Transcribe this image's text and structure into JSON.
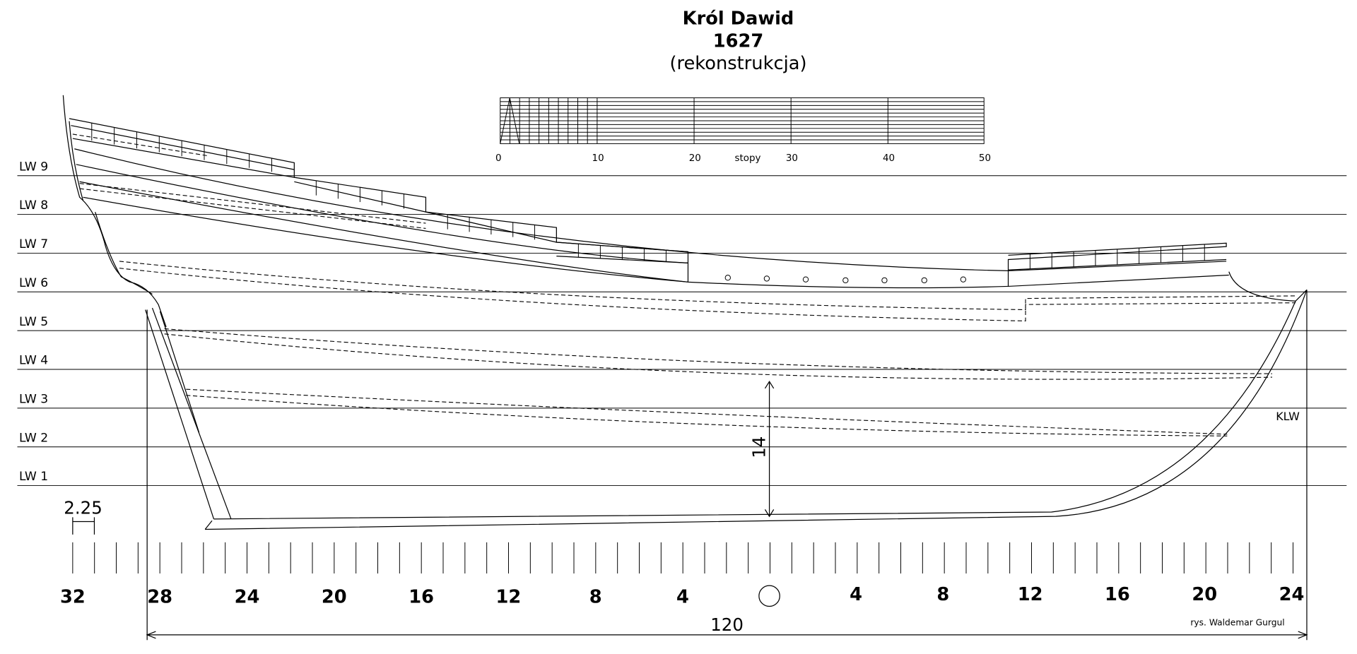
{
  "title": {
    "name": "Król Dawid",
    "year": "1627",
    "note": "(rekonstrukcja)"
  },
  "scale": {
    "labels": [
      "0",
      "10",
      "20",
      "30",
      "40",
      "50"
    ],
    "unit": "stopy"
  },
  "waterlines": [
    "LW 9",
    "LW 8",
    "LW 7",
    "LW 6",
    "LW 5",
    "LW 4",
    "LW 3",
    "LW 2",
    "LW 1"
  ],
  "frames": {
    "left": [
      32,
      28,
      24,
      20,
      16,
      12,
      8,
      4
    ],
    "right": [
      4,
      8,
      12,
      16,
      20,
      24
    ]
  },
  "dimensions": {
    "draft": "14",
    "frame_spacing": "2.25",
    "length": "120"
  },
  "labels": {
    "klw": "KLW",
    "author": "rys. Waldemar Gurgul"
  }
}
